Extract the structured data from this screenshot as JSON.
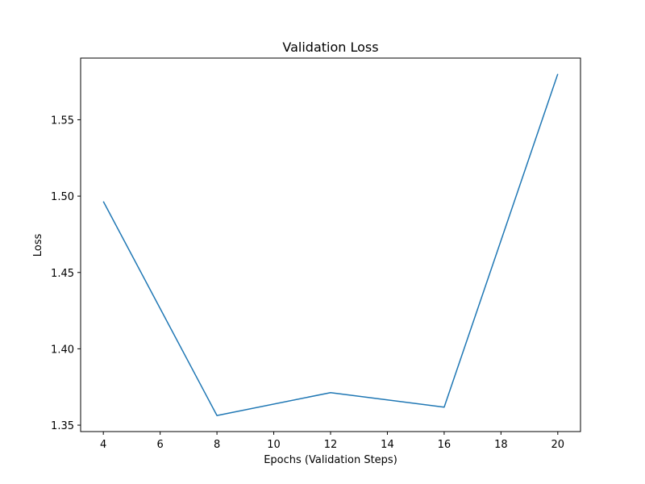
{
  "chart_data": {
    "type": "line",
    "title": "Validation Loss",
    "xlabel": "Epochs (Validation Steps)",
    "ylabel": "Loss",
    "xlim": [
      3.2,
      20.8
    ],
    "ylim": [
      1.3458,
      1.5904
    ],
    "x_ticks": [
      4,
      6,
      8,
      10,
      12,
      14,
      16,
      18,
      20
    ],
    "y_ticks": [
      1.35,
      1.4,
      1.45,
      1.5,
      1.55
    ],
    "x_tick_labels": [
      "4",
      "6",
      "8",
      "10",
      "12",
      "14",
      "16",
      "18",
      "20"
    ],
    "y_tick_labels": [
      "1.35",
      "1.40",
      "1.45",
      "1.50",
      "1.55"
    ],
    "grid": false,
    "series": [
      {
        "color": "#1f77b4",
        "x": [
          4,
          8,
          12,
          16,
          20
        ],
        "y": [
          1.4965,
          1.3563,
          1.3713,
          1.3618,
          1.58
        ]
      }
    ]
  }
}
